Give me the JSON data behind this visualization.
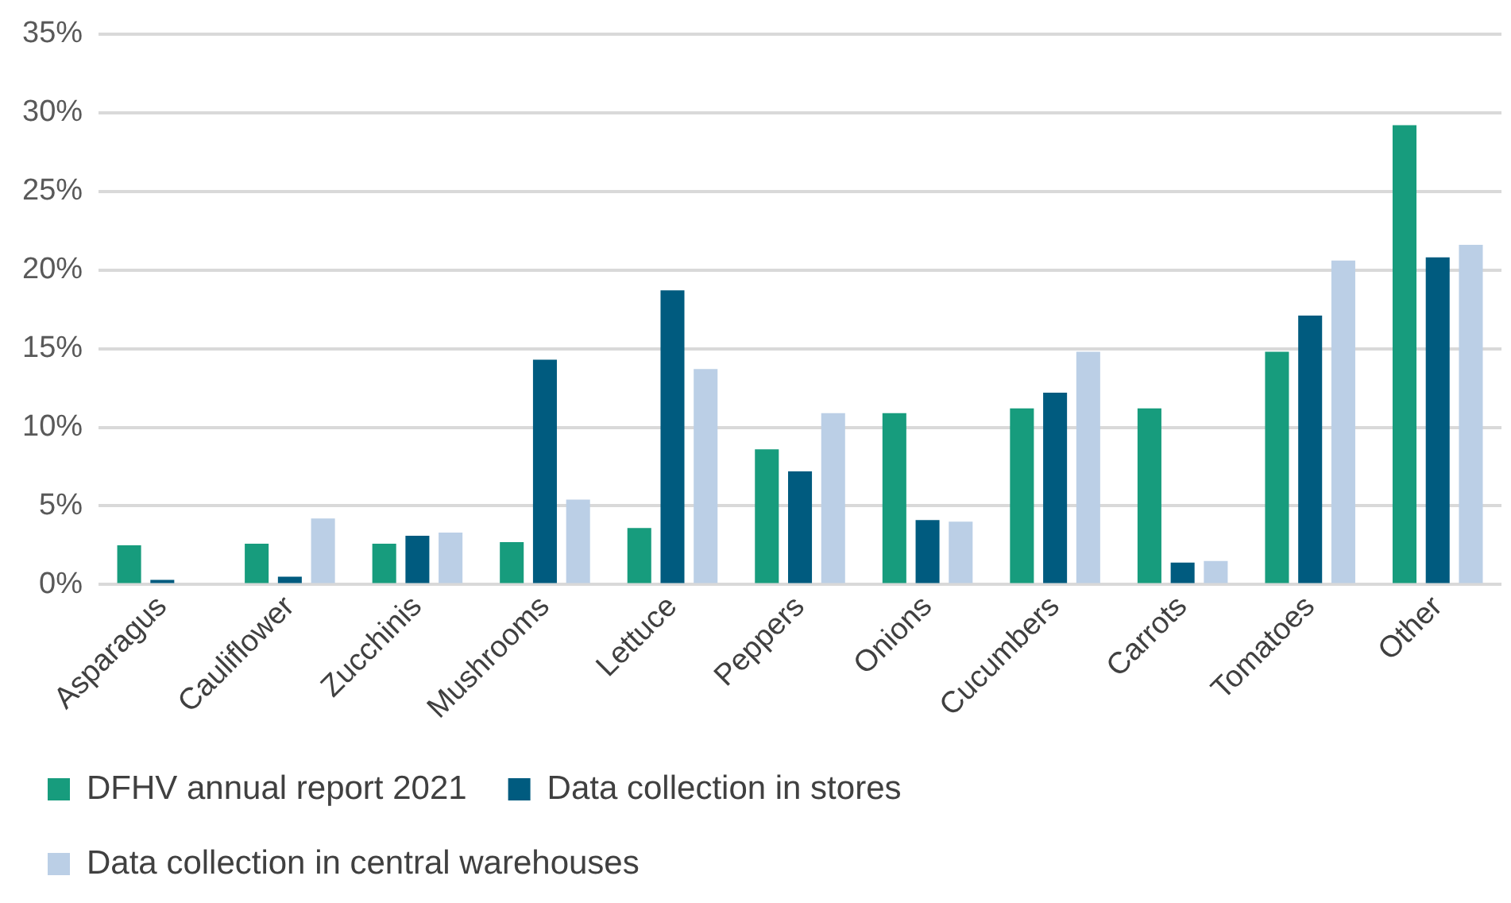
{
  "chart_data": {
    "type": "bar",
    "categories": [
      "Asparagus",
      "Cauliflower",
      "Zucchinis",
      "Mushrooms",
      "Lettuce",
      "Peppers",
      "Onions",
      "Cucumbers",
      "Carrots",
      "Tomatoes",
      "Other"
    ],
    "series": [
      {
        "name": "DFHV annual report 2021",
        "color": "#179c7d",
        "values": [
          2.5,
          2.6,
          2.6,
          2.7,
          3.6,
          8.6,
          10.9,
          11.2,
          11.2,
          14.8,
          29.2
        ]
      },
      {
        "name": "Data collection in stores",
        "color": "#005b7f",
        "values": [
          0.3,
          0.5,
          3.1,
          14.3,
          18.7,
          7.2,
          4.1,
          12.2,
          1.4,
          17.1,
          20.8
        ]
      },
      {
        "name": "Data collection in central warehouses",
        "color": "#bbcfe6",
        "values": [
          0,
          4.2,
          3.3,
          5.4,
          13.7,
          10.9,
          4.0,
          14.8,
          1.5,
          20.6,
          21.6
        ]
      }
    ],
    "ylim": [
      0,
      35
    ],
    "yticks": [
      {
        "value": 0,
        "label": "0%"
      },
      {
        "value": 5,
        "label": "5%"
      },
      {
        "value": 10,
        "label": "10%"
      },
      {
        "value": 15,
        "label": "15%"
      },
      {
        "value": 20,
        "label": "20%"
      },
      {
        "value": 25,
        "label": "25%"
      },
      {
        "value": 30,
        "label": "30%"
      },
      {
        "value": 35,
        "label": "35%"
      }
    ],
    "grid": "y",
    "legend": "bottom"
  }
}
